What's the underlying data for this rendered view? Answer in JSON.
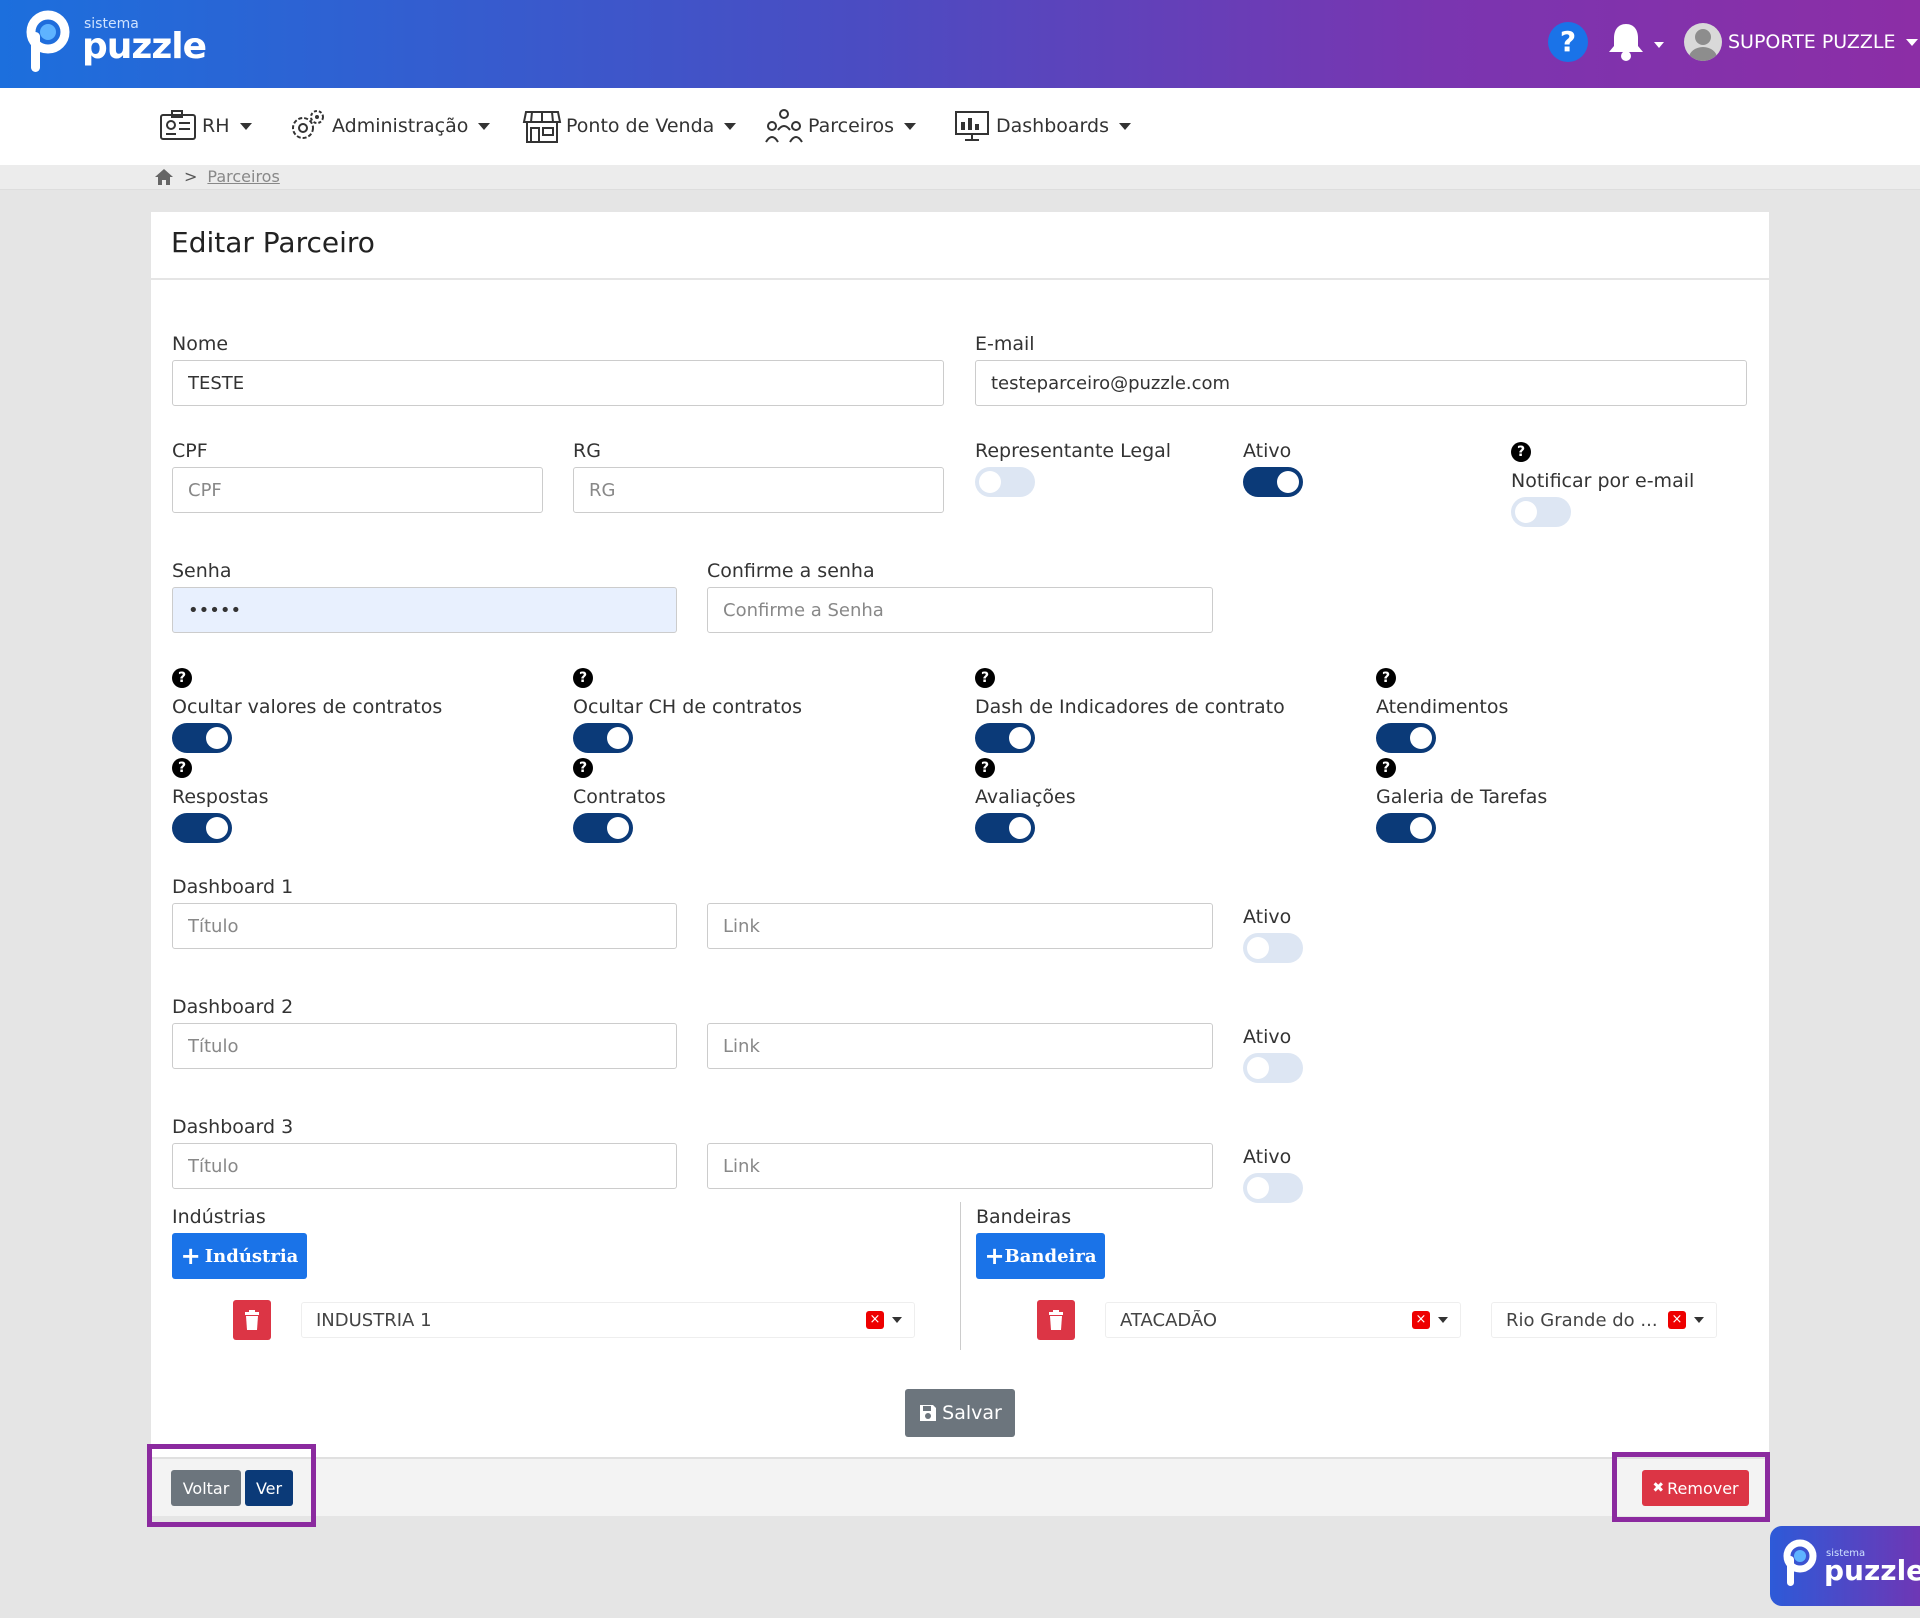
{
  "header": {
    "brand_small": "sistema",
    "brand": "puzzle",
    "help_symbol": "?",
    "help_icon": "question-circle-icon",
    "bell_icon": "bell-icon",
    "user_name": "SUPORTE PUZZLE",
    "colors": {
      "gradient_start": "#1c6fdd",
      "gradient_end": "#8c2ea6"
    }
  },
  "nav": {
    "items": [
      {
        "label": "RH",
        "icon": "id-card-icon"
      },
      {
        "label": "Administração",
        "icon": "gears-icon"
      },
      {
        "label": "Ponto de Venda",
        "icon": "store-icon"
      },
      {
        "label": "Parceiros",
        "icon": "partners-icon"
      },
      {
        "label": "Dashboards",
        "icon": "monitor-chart-icon"
      }
    ]
  },
  "breadcrumb": {
    "separator": ">",
    "current": "Parceiros",
    "home_icon": "home-icon"
  },
  "page": {
    "title": "Editar Parceiro"
  },
  "form": {
    "nome": {
      "label": "Nome",
      "value": "TESTE"
    },
    "email": {
      "label": "E-mail",
      "value": "testeparceiro@puzzle.com"
    },
    "cpf": {
      "label": "CPF",
      "placeholder": "CPF"
    },
    "rg": {
      "label": "RG",
      "placeholder": "RG"
    },
    "representante_legal": {
      "label": "Representante Legal",
      "on": false
    },
    "ativo": {
      "label": "Ativo",
      "on": true
    },
    "notificar": {
      "label": "Notificar por e-mail",
      "on": false
    },
    "senha": {
      "label": "Senha",
      "value": "•••••"
    },
    "confirme_senha": {
      "label": "Confirme a senha",
      "placeholder": "Confirme a Senha"
    },
    "permissions": [
      {
        "label": "Ocultar valores de contratos",
        "on": true
      },
      {
        "label": "Ocultar CH de contratos",
        "on": true
      },
      {
        "label": "Dash de Indicadores de contrato",
        "on": true
      },
      {
        "label": "Atendimentos",
        "on": true
      },
      {
        "label": "Respostas",
        "on": true
      },
      {
        "label": "Contratos",
        "on": true
      },
      {
        "label": "Avaliações",
        "on": true
      },
      {
        "label": "Galeria de Tarefas",
        "on": true
      }
    ],
    "dashboards": [
      {
        "label": "Dashboard 1",
        "title_placeholder": "Título",
        "link_placeholder": "Link",
        "ativo_label": "Ativo",
        "on": false
      },
      {
        "label": "Dashboard 2",
        "title_placeholder": "Título",
        "link_placeholder": "Link",
        "ativo_label": "Ativo",
        "on": false
      },
      {
        "label": "Dashboard 3",
        "title_placeholder": "Título",
        "link_placeholder": "Link",
        "ativo_label": "Ativo",
        "on": false
      }
    ],
    "industrias": {
      "label": "Indústrias",
      "add_label": "Indústria",
      "items": [
        "INDUSTRIA 1"
      ]
    },
    "bandeiras": {
      "label": "Bandeiras",
      "add_label": "Bandeira",
      "items": [
        {
          "bandeira": "ATACADÃO",
          "estado": "Rio Grande do ..."
        }
      ]
    },
    "clear_symbol": "×"
  },
  "actions": {
    "save": "Salvar",
    "back": "Voltar",
    "view": "Ver",
    "remove": "Remover",
    "remove_symbol": "✖"
  },
  "colors": {
    "primary": "#1a73e8",
    "toggle_on": "#0b3a78",
    "danger": "#dc3545",
    "highlight": "#8b2a9f",
    "secondary": "#6c757d"
  }
}
